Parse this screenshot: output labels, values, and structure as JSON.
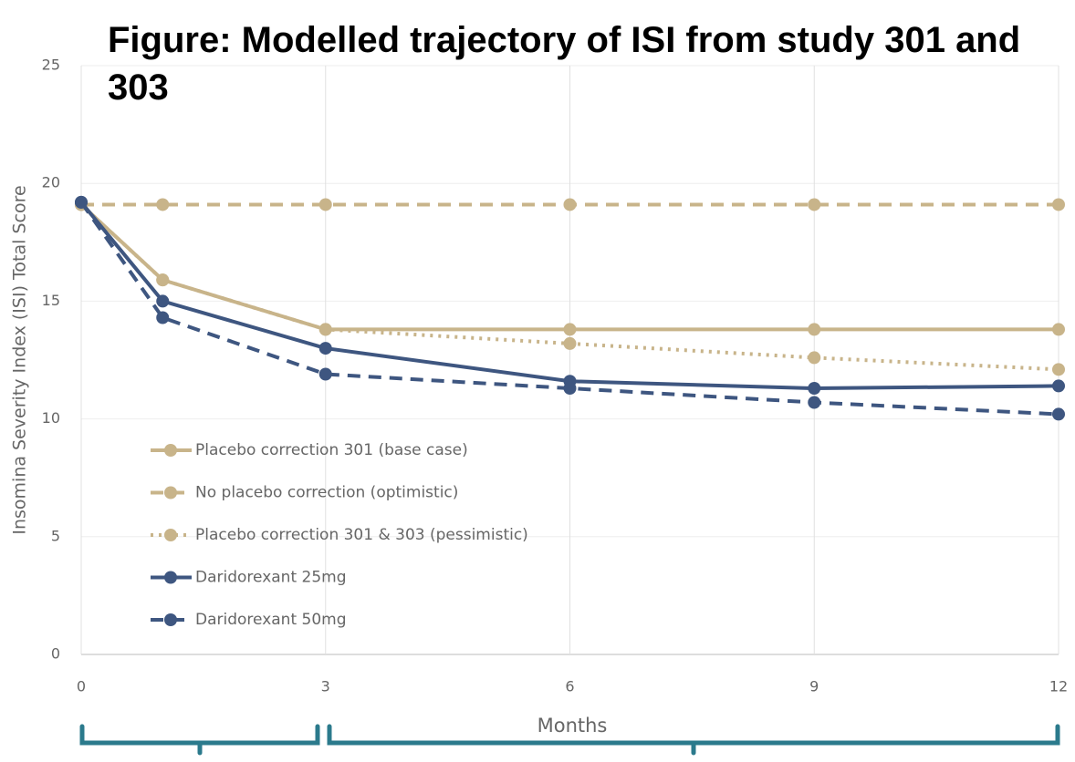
{
  "chart_data": {
    "type": "line",
    "title": "Figure: Modelled trajectory of ISI from study 301 and 303",
    "x_label": "Months",
    "y_label": "Insomina Severity Index (ISI) Total Score",
    "x": [
      0,
      1,
      3,
      6,
      9,
      12
    ],
    "xlim": [
      0,
      12
    ],
    "xticks": [
      0,
      3,
      6,
      9,
      12
    ],
    "ylim": [
      0,
      25
    ],
    "yticks": [
      0,
      5,
      10,
      15,
      20,
      25
    ],
    "grid": true,
    "series": [
      {
        "name": "Placebo correction 301 (base case)",
        "color": "#c8b48a",
        "dash": "solid",
        "values": [
          19.1,
          15.9,
          13.8,
          13.8,
          13.8,
          13.8
        ]
      },
      {
        "name": "No placebo correction (optimistic)",
        "color": "#c8b48a",
        "dash": "dashed",
        "values": [
          19.1,
          19.1,
          19.1,
          19.1,
          19.1,
          19.1
        ]
      },
      {
        "name": "Placebo correction 301 & 303 (pessimistic)",
        "color": "#c8b48a",
        "dash": "dotted",
        "values": [
          19.1,
          15.9,
          13.8,
          13.2,
          12.6,
          12.1
        ]
      },
      {
        "name": "Daridorexant 25mg",
        "color": "#3e5680",
        "dash": "solid",
        "values": [
          19.2,
          15.0,
          13.0,
          11.6,
          11.3,
          11.4
        ]
      },
      {
        "name": "Daridorexant 50mg",
        "color": "#3e5680",
        "dash": "dashed",
        "values": [
          19.2,
          14.3,
          11.9,
          11.3,
          10.7,
          10.2
        ]
      }
    ]
  }
}
